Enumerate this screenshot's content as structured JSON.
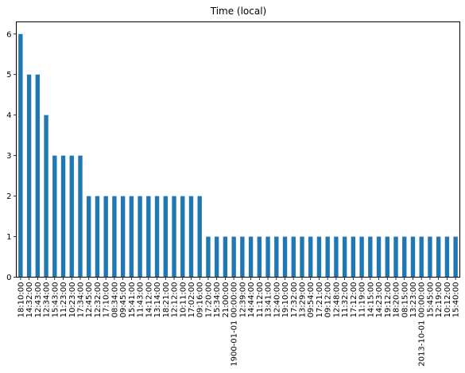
{
  "chart_data": {
    "type": "bar",
    "title": "Time (local)",
    "xlabel": "",
    "ylabel": "",
    "ylim": [
      0,
      6.3
    ],
    "yticks": [
      0,
      1,
      2,
      3,
      4,
      5,
      6
    ],
    "bar_color": "#1f77b4",
    "grid": false,
    "categories": [
      "18:10:00",
      "14:32:00",
      "12:43:00",
      "12:34:00",
      "15:43:00",
      "11:23:00",
      "10:23:00",
      "17:34:00",
      "12:45:00",
      "12:32:00",
      "17:10:00",
      "08:34:00",
      "09:45:00",
      "15:41:00",
      "11:43:00",
      "14:12:00",
      "13:14:00",
      "18:21:00",
      "12:12:00",
      "10:11:00",
      "17:02:00",
      "09:16:00",
      "17:20:00",
      "15:34:00",
      "21:00:00",
      "1900-01-01 00:00:00",
      "12:39:00",
      "14:44:00",
      "11:12:00",
      "13:41:00",
      "12:40:00",
      "19:10:00",
      "17:32:00",
      "13:29:00",
      "09:54:00",
      "17:21:00",
      "09:12:00",
      "12:48:00",
      "11:32:00",
      "17:12:00",
      "11:19:00",
      "14:15:00",
      "14:23:00",
      "19:12:00",
      "18:20:00",
      "08:15:00",
      "13:23:00",
      "2013-10-01 00:00:00",
      "15:45:00",
      "12:19:00",
      "10:12:00",
      "15:40:00"
    ],
    "values": [
      6,
      5,
      5,
      4,
      3,
      3,
      3,
      3,
      2,
      2,
      2,
      2,
      2,
      2,
      2,
      2,
      2,
      2,
      2,
      2,
      2,
      2,
      1,
      1,
      1,
      1,
      1,
      1,
      1,
      1,
      1,
      1,
      1,
      1,
      1,
      1,
      1,
      1,
      1,
      1,
      1,
      1,
      1,
      1,
      1,
      1,
      1,
      1,
      1,
      1,
      1,
      1
    ]
  }
}
